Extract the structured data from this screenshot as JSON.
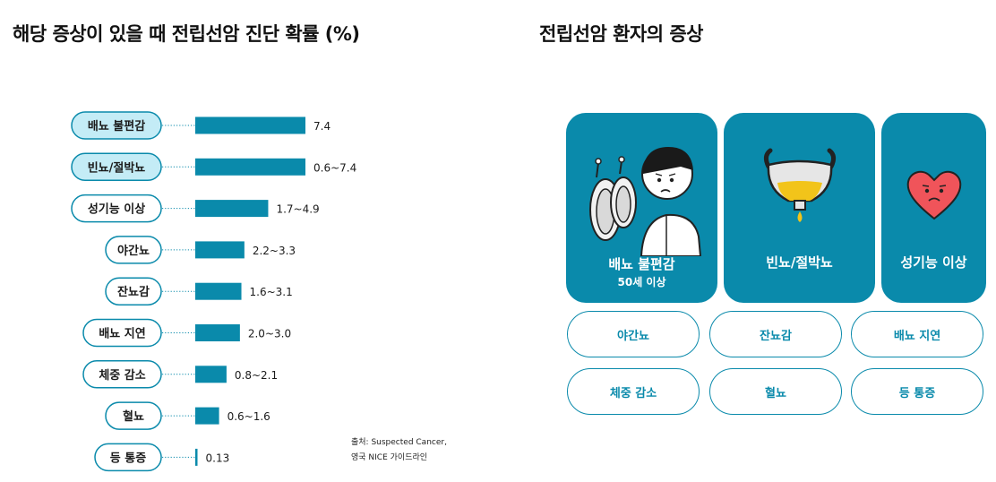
{
  "chart_title": "해당 증상이 있을 때 전립선암 진단 확률 (%)",
  "panel_title": "전립선암 환자의 증상",
  "source": {
    "line1": "출처: Suspected Cancer,",
    "line2": "영국 NICE 가이드라인"
  },
  "colors": {
    "accent": "#0a8aab",
    "highlight_pill": "#c4ecf6",
    "heart": "#f0545a"
  },
  "chart_data": {
    "type": "bar",
    "title": "해당 증상이 있을 때 전립선암 진단 확률 (%)",
    "orientation": "horizontal",
    "categories": [
      "배뇨 불편감",
      "빈뇨/절박뇨",
      "성기능 이상",
      "야간뇨",
      "잔뇨감",
      "배뇨 지연",
      "체중 감소",
      "혈뇨",
      "등 통증"
    ],
    "value_labels": [
      "7.4",
      "0.6~7.4",
      "1.7~4.9",
      "2.2~3.3",
      "1.6~3.1",
      "2.0~3.0",
      "0.8~2.1",
      "0.6~1.6",
      "0.13"
    ],
    "ranges": [
      [
        7.4,
        7.4
      ],
      [
        0.6,
        7.4
      ],
      [
        1.7,
        4.9
      ],
      [
        2.2,
        3.3
      ],
      [
        1.6,
        3.1
      ],
      [
        2.0,
        3.0
      ],
      [
        0.8,
        2.1
      ],
      [
        0.6,
        1.6
      ],
      [
        0.13,
        0.13
      ]
    ],
    "values": [
      7.4,
      7.4,
      4.9,
      3.3,
      3.1,
      3.0,
      2.1,
      1.6,
      0.13
    ],
    "highlighted": [
      true,
      true,
      false,
      false,
      false,
      false,
      false,
      false,
      false
    ],
    "xlim": [
      0,
      7.4
    ],
    "grid": false
  },
  "cards": [
    {
      "label": "배뇨 불편감",
      "sub": "50세 이상",
      "icon": "toilet-man-icon"
    },
    {
      "label": "빈뇨/절박뇨",
      "sub": "",
      "icon": "bladder-icon"
    },
    {
      "label": "성기능 이상",
      "sub": "",
      "icon": "sad-heart-icon"
    }
  ],
  "chips": [
    "야간뇨",
    "잔뇨감",
    "배뇨 지연",
    "체중 감소",
    "혈뇨",
    "등 통증"
  ]
}
